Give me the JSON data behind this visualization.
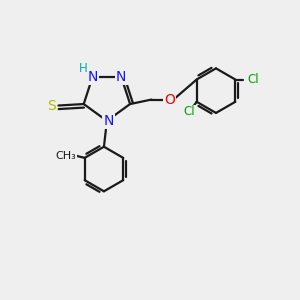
{
  "background_color": "#efefef",
  "bond_color": "#1a1a1a",
  "colors": {
    "N": "#1414ff",
    "S": "#b8b800",
    "O": "#ff0000",
    "Cl": "#00a000",
    "H": "#00aaaa",
    "C": "#1a1a1a"
  },
  "font_size_atom": 10,
  "font_size_small": 8.5,
  "lw": 1.6
}
